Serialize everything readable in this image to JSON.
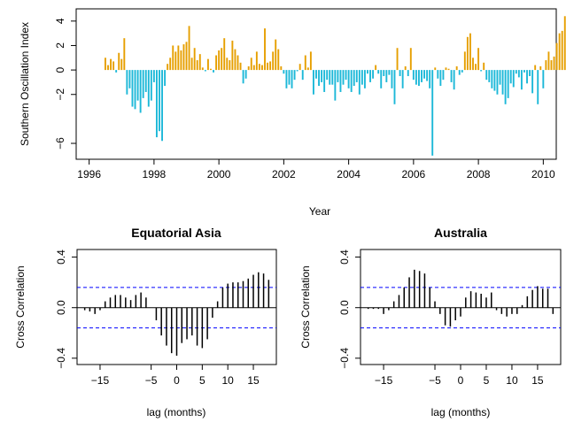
{
  "colors": {
    "positive": "#E69F00",
    "negative": "#1CB8D8",
    "bars": "#000000",
    "confidence": "#0000FF"
  },
  "chart_data": [
    {
      "type": "bar",
      "title": "",
      "xlabel": "Year",
      "ylabel": "Southern Oscillation Index",
      "xlim": [
        1995.6,
        2010.4
      ],
      "ylim": [
        -7.3,
        5.0
      ],
      "xticks": [
        1996,
        1998,
        2000,
        2002,
        2004,
        2006,
        2008,
        2010
      ],
      "yticks": [
        -6,
        -2,
        0,
        2,
        4
      ],
      "grid": false,
      "x_start": 1996.5,
      "x_step": 0.08333,
      "values": [
        1.0,
        0.4,
        0.9,
        0.7,
        -0.2,
        1.4,
        0.9,
        2.6,
        -2.0,
        -1.5,
        -3.0,
        -3.2,
        -2.5,
        -3.5,
        -2.3,
        -1.8,
        -3.0,
        -2.5,
        -1.0,
        -5.5,
        -5.0,
        -5.8,
        -1.3,
        0.5,
        1.0,
        2.0,
        1.5,
        2.0,
        1.6,
        2.1,
        2.3,
        3.6,
        1.0,
        1.8,
        0.8,
        1.3,
        0.2,
        -0.1,
        0.9,
        0.1,
        -0.2,
        1.2,
        1.6,
        1.8,
        2.6,
        1.0,
        0.8,
        2.4,
        1.7,
        1.2,
        0.6,
        -1.1,
        -0.7,
        0.3,
        1.0,
        0.4,
        1.5,
        0.5,
        0.4,
        3.4,
        0.6,
        0.7,
        1.5,
        2.5,
        1.7,
        0.3,
        -0.3,
        -1.5,
        -1.2,
        -1.5,
        -0.8,
        -0.1,
        0.5,
        -0.8,
        1.2,
        0.2,
        1.5,
        -2.0,
        -0.7,
        -1.3,
        -1.0,
        -1.8,
        -0.8,
        -1.2,
        -1.2,
        -2.5,
        -1.0,
        -1.8,
        -1.2,
        -0.8,
        -1.5,
        -1.8,
        -1.3,
        -1.0,
        -2.0,
        -1.2,
        -1.5,
        -0.3,
        -1.0,
        -0.7,
        0.4,
        -0.3,
        -1.5,
        -0.5,
        -1.0,
        -0.4,
        -1.5,
        -2.8,
        1.8,
        -0.5,
        -1.5,
        0.3,
        -0.5,
        1.8,
        -0.8,
        -1.2,
        -1.3,
        -1.0,
        -0.7,
        -0.9,
        -1.5,
        -7.0,
        0.2,
        -0.7,
        -1.3,
        -0.8,
        0.2,
        0.1,
        -1.0,
        -1.6,
        0.3,
        -0.4,
        -0.2,
        1.5,
        2.7,
        3.0,
        1.0,
        0.5,
        1.8,
        -0.1,
        0.6,
        -0.8,
        -1.0,
        -1.5,
        -1.7,
        -2.0,
        -1.2,
        -2.0,
        -2.8,
        -2.3,
        -1.1,
        -1.4,
        -0.3,
        -0.6,
        -1.6,
        -0.2,
        -1.1,
        -0.5,
        -1.9,
        0.4,
        -2.8,
        0.3,
        -1.5,
        0.8,
        1.5,
        0.8,
        1.1,
        2.2,
        3.0,
        3.2,
        4.4,
        2.4,
        1.3,
        1.0,
        0.8,
        0.3,
        1.2,
        0.7,
        0.9,
        2.4,
        2.3,
        2.5,
        1.4,
        2.6,
        2.8,
        1.5,
        0.3,
        -0.7,
        -0.8,
        -0.6
      ]
    },
    {
      "type": "bar",
      "title": "Equatorial Asia",
      "xlabel": "lag (months)",
      "ylabel": "Cross Correlation",
      "xlim": [
        -19.5,
        19.5
      ],
      "ylim": [
        -0.45,
        0.46
      ],
      "xticks": [
        -15,
        -5,
        0,
        5,
        10,
        15
      ],
      "yticks": [
        -0.4,
        0.0,
        0.4
      ],
      "confidence": [
        0.16,
        -0.16
      ],
      "lags": [
        -18,
        -17,
        -16,
        -15,
        -14,
        -13,
        -12,
        -11,
        -10,
        -9,
        -8,
        -7,
        -6,
        -5,
        -4,
        -3,
        -2,
        -1,
        0,
        1,
        2,
        3,
        4,
        5,
        6,
        7,
        8,
        9,
        10,
        11,
        12,
        13,
        14,
        15,
        16,
        17,
        18
      ],
      "values": [
        -0.02,
        -0.03,
        -0.05,
        -0.02,
        0.05,
        0.08,
        0.1,
        0.1,
        0.08,
        0.06,
        0.1,
        0.12,
        0.08,
        0.0,
        -0.1,
        -0.22,
        -0.3,
        -0.36,
        -0.38,
        -0.28,
        -0.25,
        -0.22,
        -0.3,
        -0.32,
        -0.25,
        -0.08,
        0.05,
        0.16,
        0.19,
        0.2,
        0.2,
        0.21,
        0.23,
        0.26,
        0.28,
        0.27,
        0.22
      ]
    },
    {
      "type": "bar",
      "title": "Australia",
      "xlabel": "lag (months)",
      "ylabel": "Cross Correlation",
      "xlim": [
        -19.5,
        19.5
      ],
      "ylim": [
        -0.45,
        0.46
      ],
      "xticks": [
        -15,
        -5,
        0,
        5,
        10,
        15
      ],
      "yticks": [
        -0.4,
        0.0,
        0.4
      ],
      "confidence": [
        0.16,
        -0.16
      ],
      "lags": [
        -18,
        -17,
        -16,
        -15,
        -14,
        -13,
        -12,
        -11,
        -10,
        -9,
        -8,
        -7,
        -6,
        -5,
        -4,
        -3,
        -2,
        -1,
        0,
        1,
        2,
        3,
        4,
        5,
        6,
        7,
        8,
        9,
        10,
        11,
        12,
        13,
        14,
        15,
        16,
        17,
        18
      ],
      "values": [
        -0.01,
        -0.01,
        -0.01,
        -0.05,
        -0.02,
        0.05,
        0.1,
        0.16,
        0.24,
        0.3,
        0.29,
        0.27,
        0.16,
        0.05,
        -0.05,
        -0.14,
        -0.15,
        -0.1,
        -0.07,
        0.08,
        0.13,
        0.12,
        0.11,
        0.08,
        0.12,
        -0.02,
        -0.05,
        -0.07,
        -0.05,
        -0.05,
        0.02,
        0.09,
        0.14,
        0.17,
        0.15,
        0.15,
        -0.05
      ]
    }
  ]
}
